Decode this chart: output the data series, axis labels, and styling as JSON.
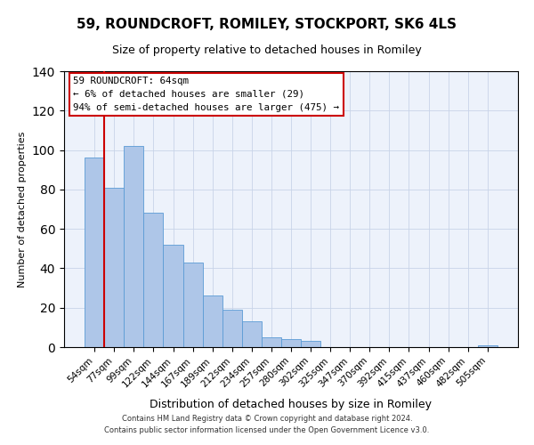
{
  "title": "59, ROUNDCROFT, ROMILEY, STOCKPORT, SK6 4LS",
  "subtitle": "Size of property relative to detached houses in Romiley",
  "xlabel": "Distribution of detached houses by size in Romiley",
  "ylabel": "Number of detached properties",
  "footer_line1": "Contains HM Land Registry data © Crown copyright and database right 2024.",
  "footer_line2": "Contains public sector information licensed under the Open Government Licence v3.0.",
  "bin_labels": [
    "54sqm",
    "77sqm",
    "99sqm",
    "122sqm",
    "144sqm",
    "167sqm",
    "189sqm",
    "212sqm",
    "234sqm",
    "257sqm",
    "280sqm",
    "302sqm",
    "325sqm",
    "347sqm",
    "370sqm",
    "392sqm",
    "415sqm",
    "437sqm",
    "460sqm",
    "482sqm",
    "505sqm"
  ],
  "bar_values": [
    96,
    81,
    102,
    68,
    52,
    43,
    26,
    19,
    13,
    5,
    4,
    3,
    0,
    0,
    0,
    0,
    0,
    0,
    0,
    0,
    1
  ],
  "bar_color": "#aec6e8",
  "bar_edge_color": "#5b9bd5",
  "ylim": [
    0,
    140
  ],
  "yticks": [
    0,
    20,
    40,
    60,
    80,
    100,
    120,
    140
  ],
  "marker_line_color": "#cc0000",
  "annotation_line1": "59 ROUNDCROFT: 64sqm",
  "annotation_line2": "← 6% of detached houses are smaller (29)",
  "annotation_line3": "94% of semi-detached houses are larger (475) →",
  "annotation_box_edge_color": "#cc0000",
  "annotation_box_facecolor": "#ffffff"
}
